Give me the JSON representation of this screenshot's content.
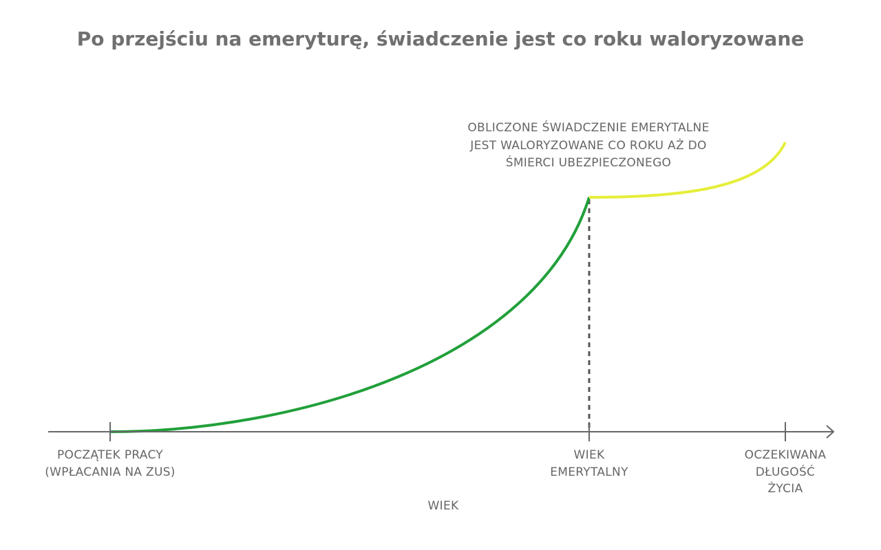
{
  "title": "Po przejściu na emeryturę, świadczenie jest co roku waloryzowane",
  "annotation": [
    "OBLICZONE ŚWIADCZENIE EMERYTALNE",
    "JEST WALORYZOWANE CO ROKU AŻ DO",
    "ŚMIERCI UBEZPIECZONEGO"
  ],
  "x_labels": [
    {
      "lines": [
        "POCZĄTEK PRACY",
        "(WPŁACANIA NA ZUS)"
      ]
    },
    {
      "lines": [
        "WIEK",
        "EMERYTALNY"
      ]
    },
    {
      "lines": [
        "OCZEKIWANA",
        "DŁUGOŚĆ",
        "ŻYCIA"
      ]
    }
  ],
  "x_axis_label": "WIEK"
}
